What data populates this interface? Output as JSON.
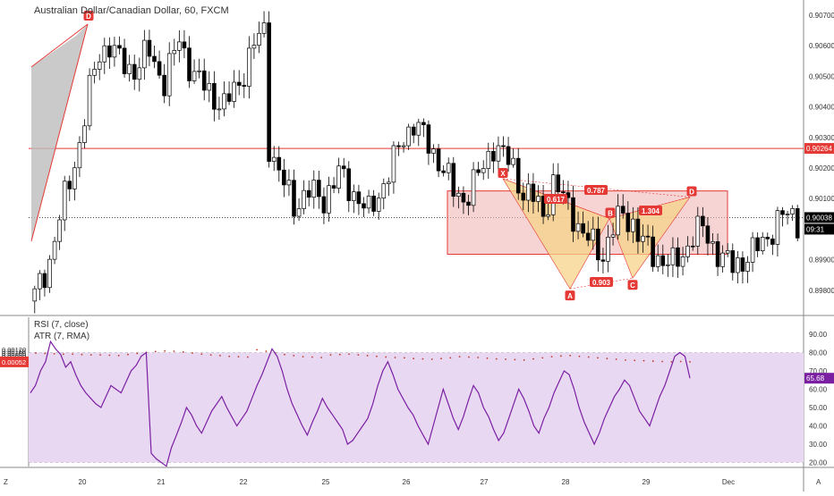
{
  "header": {
    "symbol_title": "Australian Dollar/Canadian Dollar, 60, FXCM"
  },
  "price_axis": {
    "ticks": [
      "0.90700",
      "0.90600",
      "0.90500",
      "0.90400",
      "0.90300",
      "0.90200",
      "0.90100",
      "0.89900",
      "0.89800"
    ],
    "hline_label": "0.90264",
    "last_price_label": "0.90038",
    "countdown_label": "09:31"
  },
  "rsi_axis": {
    "ticks": [
      "90.00",
      "80.00",
      "70.00",
      "60.00",
      "50.00",
      "40.00",
      "30.00",
      "20.00"
    ],
    "rsi_value_label": "65.68"
  },
  "atr_axis": {
    "ticks": [
      "0.00120",
      "0.00110",
      "0.00100",
      "0.00090",
      "0.00080",
      "0.00070",
      "0.00060"
    ],
    "atr_value_label": "0.00052"
  },
  "indicators": {
    "rsi_title": "RSI (7, close)",
    "atr_title": "ATR (7, RMA)"
  },
  "time_axis": {
    "left_marker": "Z",
    "labels": [
      "20",
      "21",
      "22",
      "25",
      "26",
      "27",
      "28",
      "29",
      "Dec"
    ],
    "right_marker": "A"
  },
  "pattern": {
    "points": [
      "X",
      "A",
      "B",
      "C",
      "D"
    ],
    "ratios": [
      "0.617",
      "0.787",
      "1.304",
      "0.903"
    ],
    "prev_point": "D"
  },
  "colors": {
    "up_candle": "#ffffff",
    "down_candle": "#000000",
    "red_line": "#e53935",
    "rsi_line": "#7b1fa2",
    "rsi_band": "#e8d8f2",
    "pattern_fill": "#f7d38a",
    "box_fill": "#f2b8b8",
    "label_red": "#e53935"
  },
  "chart_data": {
    "type": "candlestick",
    "title": "Australian Dollar/Canadian Dollar, 60, FXCM",
    "x_labels": [
      "20",
      "21",
      "22",
      "25",
      "26",
      "27",
      "28",
      "29",
      "Dec"
    ],
    "y_range": [
      0.8975,
      0.9072
    ],
    "horizontal_line": 0.90264,
    "last_price": 0.90038,
    "close_path": [
      [
        0,
        0.8978
      ],
      [
        3,
        0.899
      ],
      [
        6,
        0.901
      ],
      [
        9,
        0.9028
      ],
      [
        11,
        0.9045
      ],
      [
        13,
        0.9058
      ],
      [
        15,
        0.906
      ],
      [
        17,
        0.9055
      ],
      [
        20,
        0.9052
      ],
      [
        23,
        0.9058
      ],
      [
        26,
        0.9048
      ],
      [
        29,
        0.9062
      ],
      [
        32,
        0.905
      ],
      [
        35,
        0.9045
      ],
      [
        38,
        0.904
      ],
      [
        41,
        0.9048
      ],
      [
        44,
        0.906
      ],
      [
        46,
        0.9065
      ],
      [
        47,
        0.9028
      ],
      [
        49,
        0.9018
      ],
      [
        52,
        0.9008
      ],
      [
        55,
        0.9012
      ],
      [
        58,
        0.901
      ],
      [
        61,
        0.9018
      ],
      [
        64,
        0.9012
      ],
      [
        67,
        0.9005
      ],
      [
        70,
        0.9015
      ],
      [
        72,
        0.9022
      ],
      [
        74,
        0.903
      ],
      [
        76,
        0.9035
      ],
      [
        78,
        0.903
      ],
      [
        80,
        0.9025
      ],
      [
        82,
        0.902
      ],
      [
        84,
        0.9012
      ],
      [
        86,
        0.901
      ],
      [
        88,
        0.9015
      ],
      [
        90,
        0.902
      ],
      [
        92,
        0.9028
      ],
      [
        94,
        0.9024
      ],
      [
        96,
        0.902
      ],
      [
        98,
        0.9012
      ],
      [
        100,
        0.901
      ],
      [
        102,
        0.9005
      ],
      [
        104,
        0.9015
      ],
      [
        106,
        0.901
      ],
      [
        108,
        0.9005
      ],
      [
        110,
        0.8998
      ],
      [
        112,
        0.8995
      ],
      [
        114,
        0.8992
      ],
      [
        116,
        0.9
      ],
      [
        118,
        0.9005
      ],
      [
        120,
        0.9002
      ],
      [
        122,
        0.8995
      ],
      [
        124,
        0.8992
      ],
      [
        126,
        0.899
      ],
      [
        128,
        0.8988
      ],
      [
        130,
        0.8992
      ],
      [
        132,
        0.8998
      ],
      [
        134,
        0.9
      ],
      [
        136,
        0.8995
      ],
      [
        138,
        0.899
      ],
      [
        140,
        0.8988
      ],
      [
        142,
        0.899
      ],
      [
        144,
        0.8992
      ],
      [
        146,
        0.8996
      ],
      [
        148,
        0.9
      ],
      [
        150,
        0.9004
      ],
      [
        152,
        0.9005
      ],
      [
        153,
        0.9003
      ]
    ],
    "rsi": [
      58,
      62,
      70,
      75,
      86,
      82,
      79,
      72,
      75,
      68,
      62,
      58,
      55,
      52,
      50,
      56,
      62,
      60,
      58,
      64,
      70,
      73,
      78,
      80,
      25,
      22,
      20,
      18,
      28,
      35,
      42,
      50,
      46,
      40,
      36,
      42,
      48,
      52,
      56,
      50,
      45,
      40,
      44,
      48,
      55,
      62,
      68,
      75,
      82,
      78,
      70,
      60,
      52,
      46,
      40,
      35,
      42,
      48,
      55,
      50,
      46,
      42,
      38,
      30,
      32,
      36,
      40,
      44,
      52,
      62,
      70,
      75,
      68,
      60,
      55,
      50,
      46,
      40,
      35,
      30,
      40,
      50,
      60,
      52,
      44,
      38,
      45,
      54,
      62,
      58,
      50,
      45,
      38,
      32,
      36,
      44,
      52,
      60,
      55,
      48,
      40,
      36,
      44,
      50,
      58,
      64,
      70,
      68,
      60,
      50,
      42,
      36,
      30,
      36,
      44,
      50,
      56,
      60,
      65,
      62,
      55,
      48,
      44,
      40,
      48,
      56,
      62,
      70,
      78,
      80,
      78,
      66
    ],
    "atr_dots": [
      0.001,
      0.00098,
      0.00096,
      0.00094,
      0.00094,
      0.00092,
      0.0009,
      0.0009,
      0.00088,
      0.00086,
      0.00092,
      0.00098,
      0.00104,
      0.00108,
      0.00112,
      0.0011,
      0.00106,
      0.001,
      0.00094,
      0.0009,
      0.00086,
      0.00082,
      0.0008,
      0.00078,
      0.00118,
      0.0011,
      0.001,
      0.00092,
      0.00086,
      0.0008,
      0.00078,
      0.00076,
      0.0009,
      0.00092,
      0.00094,
      0.0009,
      0.00086,
      0.00082,
      0.00078,
      0.00076,
      0.00074,
      0.0007,
      0.00068,
      0.00066,
      0.0007,
      0.00074,
      0.0008,
      0.00078,
      0.00076,
      0.00072,
      0.00068,
      0.00066,
      0.00064,
      0.00062,
      0.00068,
      0.00074,
      0.0008,
      0.00084,
      0.00086,
      0.00082,
      0.00078,
      0.00074,
      0.0007,
      0.00066,
      0.00062,
      0.0006,
      0.00058,
      0.00056,
      0.00054,
      0.00052,
      0.00054,
      0.00052
    ],
    "rsi_band": [
      20,
      80
    ],
    "pattern_values": {
      "X": 0.90165,
      "A": 0.89805,
      "B": 0.90035,
      "C": 0.8984,
      "D": 0.90105
    },
    "zone_range": [
      0.89918,
      0.90125
    ]
  }
}
